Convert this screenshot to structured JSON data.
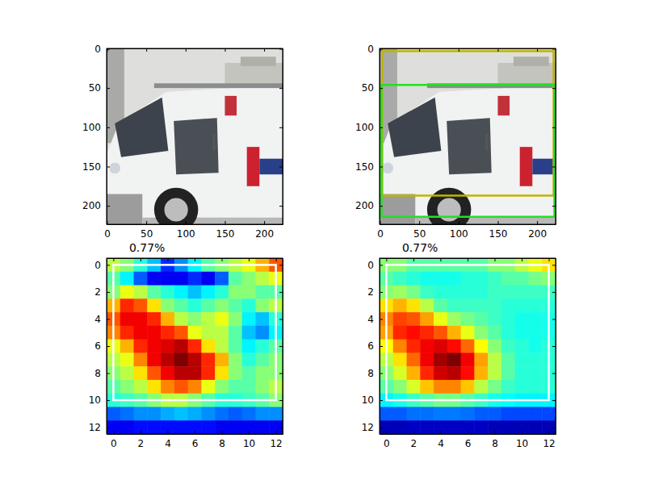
{
  "chart_data": [
    {
      "type": "image",
      "xlim": [
        -0.5,
        223.5
      ],
      "ylim": [
        223.5,
        -0.5
      ],
      "xticks": [
        0,
        50,
        100,
        150,
        200
      ],
      "yticks": [
        0,
        50,
        100,
        150,
        200
      ]
    },
    {
      "type": "image",
      "xlim": [
        -0.5,
        223.5
      ],
      "ylim": [
        223.5,
        -0.5
      ],
      "xticks": [
        0,
        50,
        100,
        150,
        200
      ],
      "yticks": [
        0,
        50,
        100,
        150,
        200
      ],
      "boxes": [
        {
          "x": [
            3,
            221
          ],
          "y": [
            3,
            187
          ],
          "color": "#c0b400"
        },
        {
          "x": [
            2,
            222
          ],
          "y": [
            46,
            214
          ],
          "color": "#22e022"
        }
      ]
    },
    {
      "type": "heatmap",
      "title": "0.77%",
      "xlim": [
        -0.5,
        12.5
      ],
      "ylim": [
        12.5,
        -0.5
      ],
      "xticks": [
        0,
        2,
        4,
        6,
        8,
        10,
        12
      ],
      "yticks": [
        0,
        2,
        4,
        6,
        8,
        10,
        12
      ],
      "color": "jet",
      "color_range": [
        0,
        1
      ],
      "cells": [
        [
          0.55,
          0.5,
          0.4,
          0.3,
          0.15,
          0.25,
          0.35,
          0.45,
          0.5,
          0.55,
          0.6,
          0.7,
          0.8
        ],
        [
          0.45,
          0.35,
          0.2,
          0.1,
          0.1,
          0.1,
          0.15,
          0.1,
          0.2,
          0.45,
          0.5,
          0.55,
          0.6
        ],
        [
          0.5,
          0.6,
          0.55,
          0.45,
          0.4,
          0.35,
          0.3,
          0.35,
          0.4,
          0.5,
          0.5,
          0.45,
          0.45
        ],
        [
          0.7,
          0.85,
          0.8,
          0.65,
          0.5,
          0.45,
          0.4,
          0.45,
          0.5,
          0.45,
          0.4,
          0.5,
          0.55
        ],
        [
          0.8,
          0.9,
          0.9,
          0.85,
          0.7,
          0.55,
          0.5,
          0.55,
          0.6,
          0.5,
          0.35,
          0.3,
          0.4
        ],
        [
          0.75,
          0.85,
          0.9,
          0.9,
          0.85,
          0.8,
          0.6,
          0.55,
          0.55,
          0.45,
          0.3,
          0.25,
          0.35
        ],
        [
          0.6,
          0.7,
          0.85,
          0.9,
          0.92,
          0.95,
          0.85,
          0.65,
          0.55,
          0.45,
          0.35,
          0.4,
          0.45
        ],
        [
          0.55,
          0.6,
          0.75,
          0.9,
          0.95,
          1.0,
          0.95,
          0.85,
          0.7,
          0.5,
          0.4,
          0.45,
          0.5
        ],
        [
          0.5,
          0.55,
          0.65,
          0.8,
          0.9,
          0.95,
          0.95,
          0.85,
          0.65,
          0.5,
          0.45,
          0.5,
          0.5
        ],
        [
          0.45,
          0.5,
          0.55,
          0.65,
          0.75,
          0.8,
          0.75,
          0.6,
          0.5,
          0.45,
          0.45,
          0.5,
          0.55
        ],
        [
          0.4,
          0.42,
          0.45,
          0.5,
          0.55,
          0.55,
          0.5,
          0.45,
          0.4,
          0.4,
          0.42,
          0.45,
          0.5
        ],
        [
          0.2,
          0.22,
          0.25,
          0.25,
          0.28,
          0.3,
          0.28,
          0.25,
          0.22,
          0.2,
          0.22,
          0.25,
          0.25
        ],
        [
          0.1,
          0.1,
          0.12,
          0.12,
          0.12,
          0.12,
          0.12,
          0.12,
          0.1,
          0.1,
          0.1,
          0.1,
          0.1
        ]
      ],
      "boxes": [
        {
          "x": [
            0,
            12
          ],
          "y": [
            0,
            10
          ],
          "color": "#ffffff"
        }
      ]
    },
    {
      "type": "heatmap",
      "title": "0.77%",
      "xlim": [
        -0.5,
        12.5
      ],
      "ylim": [
        12.5,
        -0.5
      ],
      "xticks": [
        0,
        2,
        4,
        6,
        8,
        10,
        12
      ],
      "yticks": [
        0,
        2,
        4,
        6,
        8,
        10,
        12
      ],
      "color": "jet",
      "color_range": [
        0,
        1
      ],
      "cells": [
        [
          0.5,
          0.5,
          0.45,
          0.45,
          0.45,
          0.45,
          0.45,
          0.45,
          0.5,
          0.5,
          0.55,
          0.6,
          0.65
        ],
        [
          0.45,
          0.42,
          0.4,
          0.38,
          0.38,
          0.38,
          0.4,
          0.4,
          0.42,
          0.45,
          0.45,
          0.48,
          0.5
        ],
        [
          0.5,
          0.52,
          0.48,
          0.42,
          0.4,
          0.4,
          0.4,
          0.4,
          0.42,
          0.42,
          0.42,
          0.42,
          0.42
        ],
        [
          0.65,
          0.7,
          0.65,
          0.55,
          0.45,
          0.42,
          0.42,
          0.42,
          0.42,
          0.4,
          0.4,
          0.4,
          0.4
        ],
        [
          0.75,
          0.82,
          0.8,
          0.72,
          0.6,
          0.52,
          0.48,
          0.45,
          0.42,
          0.4,
          0.38,
          0.38,
          0.38
        ],
        [
          0.72,
          0.85,
          0.88,
          0.85,
          0.8,
          0.7,
          0.6,
          0.5,
          0.45,
          0.4,
          0.38,
          0.38,
          0.38
        ],
        [
          0.62,
          0.75,
          0.85,
          0.9,
          0.92,
          0.88,
          0.78,
          0.62,
          0.5,
          0.42,
          0.4,
          0.38,
          0.4
        ],
        [
          0.55,
          0.65,
          0.78,
          0.9,
          0.97,
          1.0,
          0.9,
          0.72,
          0.55,
          0.45,
          0.4,
          0.4,
          0.4
        ],
        [
          0.5,
          0.58,
          0.7,
          0.85,
          0.93,
          0.95,
          0.88,
          0.7,
          0.55,
          0.45,
          0.4,
          0.4,
          0.4
        ],
        [
          0.45,
          0.5,
          0.58,
          0.68,
          0.75,
          0.75,
          0.68,
          0.55,
          0.48,
          0.42,
          0.4,
          0.4,
          0.4
        ],
        [
          0.35,
          0.38,
          0.42,
          0.45,
          0.48,
          0.48,
          0.45,
          0.42,
          0.38,
          0.36,
          0.35,
          0.35,
          0.35
        ],
        [
          0.2,
          0.2,
          0.22,
          0.22,
          0.23,
          0.23,
          0.22,
          0.2,
          0.2,
          0.18,
          0.18,
          0.18,
          0.18
        ],
        [
          0.05,
          0.05,
          0.06,
          0.06,
          0.06,
          0.06,
          0.06,
          0.06,
          0.05,
          0.05,
          0.05,
          0.05,
          0.05
        ]
      ],
      "boxes": [
        {
          "x": [
            0,
            12
          ],
          "y": [
            0,
            10
          ],
          "color": "#ffffff"
        }
      ]
    }
  ]
}
